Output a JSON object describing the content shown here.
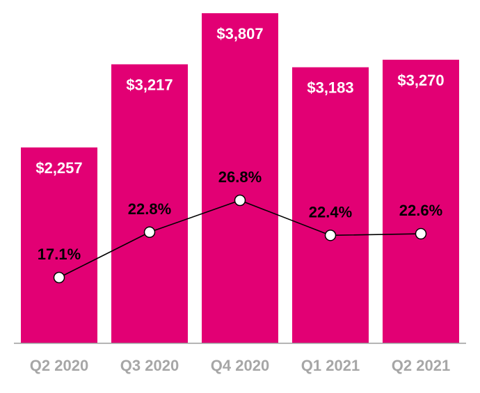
{
  "chart_data": {
    "type": "bar",
    "categories": [
      "Q2 2020",
      "Q3 2020",
      "Q4 2020",
      "Q1 2021",
      "Q2 2021"
    ],
    "series": [
      {
        "type": "bar",
        "values": [
          2257,
          3217,
          3807,
          3183,
          3270
        ],
        "labels": [
          "$2,257",
          "$3,217",
          "$3,807",
          "$3,183",
          "$3,270"
        ],
        "color": "#E20074"
      },
      {
        "type": "line",
        "values": [
          17.1,
          22.8,
          26.8,
          22.4,
          22.6
        ],
        "labels": [
          "17.1%",
          "22.8%",
          "26.8%",
          "22.4%",
          "22.6%"
        ],
        "color": "#000000"
      }
    ],
    "title": "",
    "xlabel": "",
    "ylabel": "",
    "ylim": [
      0,
      3807
    ],
    "grid": false,
    "legend": "none",
    "colors": {
      "bar": "#E20074",
      "bar_label": "#ffffff",
      "line": "#000000",
      "line_label": "#000000",
      "marker_fill": "#ffffff",
      "axis": "#999999",
      "tick_label": "#A6A6A6"
    }
  }
}
